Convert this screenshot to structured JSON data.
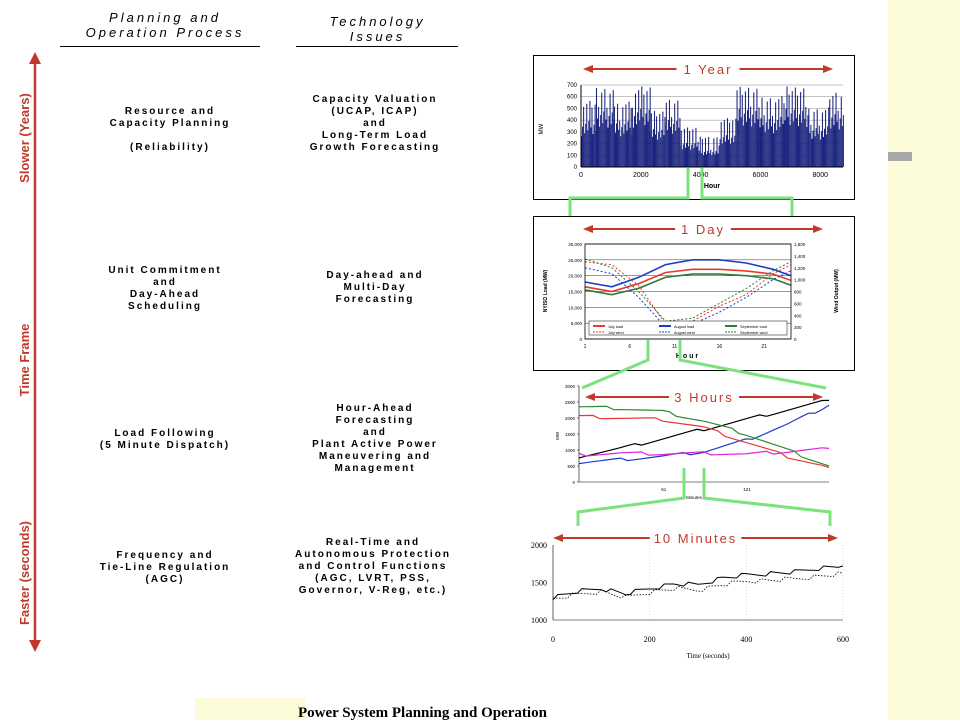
{
  "headers": {
    "planning": "Planning and\nOperation Process",
    "technology": "Technology\nIssues"
  },
  "axis_labels": {
    "slower": "Slower (Years)",
    "middle": "Time Frame",
    "faster": "Faster (seconds)"
  },
  "rows": [
    {
      "process": "Resource and\nCapacity Planning\n\n(Reliability)",
      "technology": "Capacity Valuation\n(UCAP, ICAP)\nand\nLong-Term Load\nGrowth Forecasting"
    },
    {
      "process": "Unit Commitment\nand\nDay-Ahead\nScheduling",
      "technology": "Day-ahead and\nMulti-Day\nForecasting"
    },
    {
      "process": "Load Following\n(5 Minute Dispatch)",
      "technology": "Hour-Ahead\nForecasting\nand\nPlant Active Power\nManeuvering and\nManagement"
    },
    {
      "process": "Frequency and\nTie-Line Regulation\n(AGC)",
      "technology": "Real-Time and\nAutonomous Protection\nand Control Functions\n(AGC, LVRT, PSS,\nGovernor, V-Reg, etc.)"
    }
  ],
  "caption": "Power System Planning and Operation",
  "colors": {
    "accent_red": "#c0392b",
    "zoom_green": "#7ce37c",
    "year_blue": "#1a237e",
    "side_panel": "#fbfbd8"
  },
  "chart_data": [
    {
      "type": "bar",
      "title": "1 Year",
      "ylabel": "MW",
      "xlabel": "Hour",
      "ylim": [
        0,
        700
      ],
      "yticks": [
        "0",
        "100",
        "200",
        "300",
        "400",
        "500",
        "600",
        "700"
      ],
      "xticks": [
        0,
        2000,
        4000,
        6000,
        8000
      ],
      "xlim": [
        0,
        8760
      ],
      "blocks": [
        {
          "x0": 0,
          "x1": 500,
          "level": 480
        },
        {
          "x0": 500,
          "x1": 1100,
          "level": 600
        },
        {
          "x0": 1100,
          "x1": 1700,
          "level": 470
        },
        {
          "x0": 1700,
          "x1": 2300,
          "level": 600
        },
        {
          "x0": 2300,
          "x1": 2800,
          "level": 390
        },
        {
          "x0": 2800,
          "x1": 3300,
          "level": 500
        },
        {
          "x0": 3300,
          "x1": 3900,
          "level": 250
        },
        {
          "x0": 3900,
          "x1": 4600,
          "level": 170
        },
        {
          "x0": 4600,
          "x1": 5200,
          "level": 330
        },
        {
          "x0": 5200,
          "x1": 6000,
          "level": 600
        },
        {
          "x0": 6000,
          "x1": 6800,
          "level": 520
        },
        {
          "x0": 6800,
          "x1": 7600,
          "level": 600
        },
        {
          "x0": 7600,
          "x1": 8300,
          "level": 420
        },
        {
          "x0": 8300,
          "x1": 8760,
          "level": 560
        }
      ]
    },
    {
      "type": "line",
      "title": "1 Day",
      "xlabel": "Hour",
      "ylabel": "NYISO Load (MW)",
      "y2label": "Wind Output (MW)",
      "ylim": [
        0,
        30000
      ],
      "y2lim": [
        0,
        1600
      ],
      "yticks": [
        "0",
        "5,000",
        "10,000",
        "15,000",
        "20,000",
        "25,000",
        "30,000"
      ],
      "y2ticks": [
        "0",
        "200",
        "400",
        "600",
        "800",
        "1,000",
        "1,200",
        "1,400",
        "1,600"
      ],
      "xticks": [
        1,
        6,
        11,
        16,
        21
      ],
      "xlim": [
        1,
        24
      ],
      "series": [
        {
          "name": "July load",
          "color": "#e53935",
          "dash": false,
          "axis": "y",
          "x": [
            1,
            4,
            7,
            10,
            13,
            16,
            19,
            22,
            24
          ],
          "y": [
            16500,
            15000,
            17500,
            21000,
            22000,
            22000,
            21500,
            20500,
            18500
          ]
        },
        {
          "name": "August load",
          "color": "#1e3cc8",
          "dash": false,
          "axis": "y",
          "x": [
            1,
            4,
            7,
            10,
            13,
            16,
            19,
            22,
            24
          ],
          "y": [
            18000,
            16500,
            19500,
            23500,
            25000,
            25000,
            24000,
            22000,
            20000
          ]
        },
        {
          "name": "September load",
          "color": "#2e7d32",
          "dash": false,
          "axis": "y",
          "x": [
            1,
            4,
            7,
            10,
            13,
            16,
            19,
            22,
            24
          ],
          "y": [
            15500,
            14000,
            16000,
            19500,
            20500,
            20500,
            20000,
            19000,
            17000
          ]
        },
        {
          "name": "July wind",
          "color": "#e53935",
          "dash": true,
          "axis": "y2",
          "x": [
            1,
            4,
            7,
            10,
            13,
            16,
            19,
            22,
            24
          ],
          "y": [
            1300,
            1250,
            900,
            250,
            300,
            550,
            750,
            1100,
            1250
          ]
        },
        {
          "name": "August wind",
          "color": "#1e3cc8",
          "dash": true,
          "axis": "y2",
          "x": [
            1,
            4,
            7,
            10,
            13,
            16,
            19,
            22,
            24
          ],
          "y": [
            1200,
            1100,
            700,
            200,
            250,
            450,
            700,
            1000,
            1150
          ]
        },
        {
          "name": "September wind",
          "color": "#2e7d32",
          "dash": true,
          "axis": "y2",
          "x": [
            1,
            4,
            7,
            10,
            13,
            16,
            19,
            22,
            24
          ],
          "y": [
            1350,
            1200,
            800,
            300,
            350,
            600,
            850,
            1150,
            1300
          ]
        }
      ]
    },
    {
      "type": "line",
      "title": "3 Hours",
      "xlabel": "Minutes",
      "ylabel": "MW",
      "ylim": [
        0,
        3000
      ],
      "yticks": [
        "0",
        "500",
        "1000",
        "1500",
        "2000",
        "2500",
        "3000"
      ],
      "xticks": [
        "61",
        "121"
      ],
      "xlim": [
        0,
        180
      ],
      "series": [
        {
          "color": "#000000",
          "x": [
            0,
            30,
            60,
            90,
            120,
            150,
            180
          ],
          "y": [
            800,
            1050,
            1350,
            1650,
            1950,
            2250,
            2550
          ]
        },
        {
          "color": "#1e3cc8",
          "x": [
            0,
            30,
            60,
            90,
            120,
            150,
            180
          ],
          "y": [
            600,
            700,
            800,
            950,
            1300,
            1800,
            2400
          ]
        },
        {
          "color": "#2e8b2e",
          "x": [
            0,
            30,
            60,
            90,
            120,
            150,
            180
          ],
          "y": [
            2350,
            2300,
            2200,
            1900,
            1500,
            1000,
            500
          ]
        },
        {
          "color": "#e53935",
          "x": [
            0,
            30,
            60,
            90,
            120,
            150,
            180
          ],
          "y": [
            2050,
            2000,
            1950,
            1700,
            1250,
            800,
            450
          ]
        },
        {
          "color": "#e020e0",
          "x": [
            0,
            30,
            60,
            90,
            120,
            150,
            180
          ],
          "y": [
            850,
            900,
            880,
            900,
            870,
            950,
            1050
          ]
        }
      ]
    },
    {
      "type": "line",
      "title": "10 Minutes",
      "xlabel": "Time (seconds)",
      "ylim": [
        1000,
        2000
      ],
      "yticks": [
        1000,
        1500,
        2000
      ],
      "xticks": [
        0,
        200,
        400,
        600
      ],
      "xlim": [
        0,
        600
      ],
      "series": [
        {
          "color": "#000000",
          "dash": false,
          "x": [
            0,
            50,
            100,
            150,
            200,
            250,
            300,
            350,
            400,
            450,
            500,
            550,
            600
          ],
          "y": [
            1300,
            1380,
            1420,
            1350,
            1420,
            1480,
            1470,
            1560,
            1600,
            1620,
            1640,
            1690,
            1720
          ]
        },
        {
          "color": "#000000",
          "dash": true,
          "x": [
            0,
            50,
            100,
            150,
            200,
            250,
            300,
            350,
            400,
            450,
            500,
            550,
            600
          ],
          "y": [
            1280,
            1340,
            1380,
            1300,
            1370,
            1420,
            1400,
            1470,
            1520,
            1530,
            1550,
            1580,
            1620
          ]
        }
      ]
    }
  ]
}
